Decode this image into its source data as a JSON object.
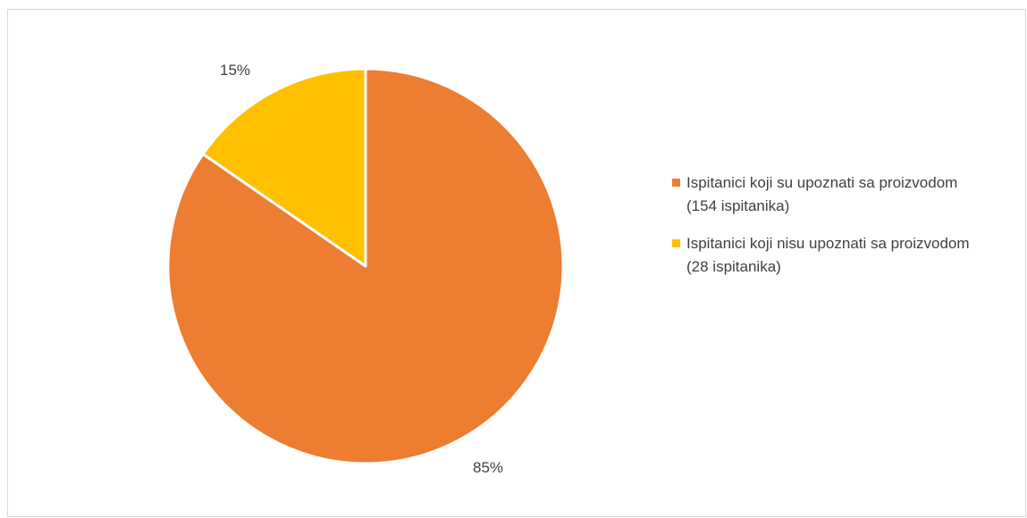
{
  "chart_data": {
    "type": "pie",
    "title": "",
    "slices": [
      {
        "label": "Ispitanici koji su upoznati sa proizvodom (154 ispitanika)",
        "value": 154,
        "percent_label": "85%",
        "color": "#ED7D31"
      },
      {
        "label": "Ispitanici koji nisu upoznati sa proizvodom (28 ispitanika)",
        "value": 28,
        "percent_label": "15%",
        "color": "#FFC000"
      }
    ],
    "legend_position": "right"
  }
}
